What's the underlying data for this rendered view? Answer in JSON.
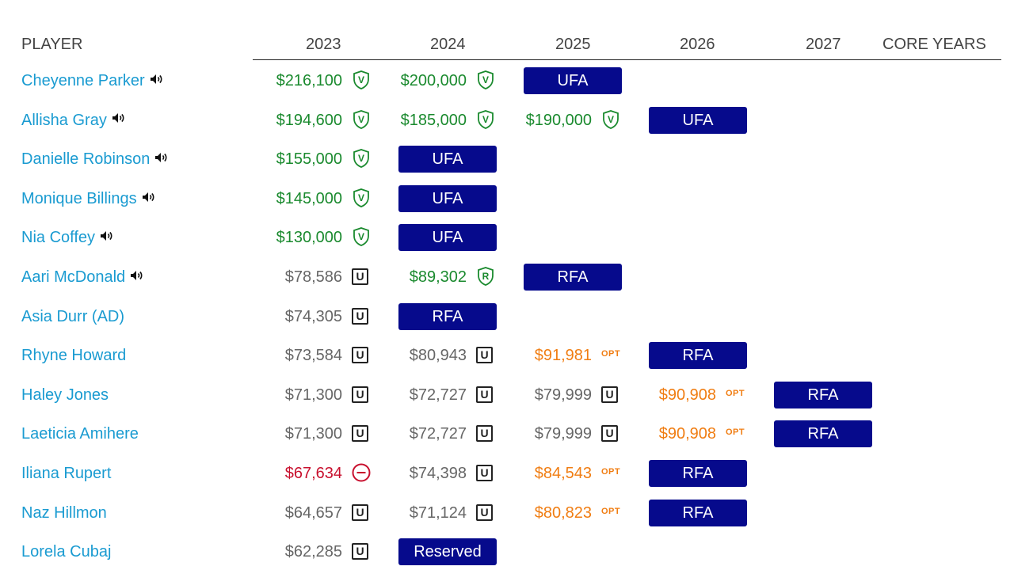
{
  "colors": {
    "player_link": "#1a9bd1",
    "amount_green": "#1a8a2e",
    "amount_gray": "#666666",
    "amount_orange": "#f07d12",
    "amount_red": "#c8102e",
    "status_pill": "#060a8c"
  },
  "table": {
    "headers": {
      "player": "PLAYER",
      "y2023": "2023",
      "y2024": "2024",
      "y2025": "2025",
      "y2026": "2026",
      "y2027": "2027",
      "core_years": "CORE YEARS"
    },
    "rows": [
      {
        "player": "Cheyenne Parker",
        "has_audio": true,
        "cells": [
          {
            "kind": "amount",
            "value": "$216,100",
            "tone": "green",
            "icon": "shield-v"
          },
          {
            "kind": "amount",
            "value": "$200,000",
            "tone": "green",
            "icon": "shield-v"
          },
          {
            "kind": "status",
            "value": "UFA"
          }
        ]
      },
      {
        "player": "Allisha Gray",
        "has_audio": true,
        "cells": [
          {
            "kind": "amount",
            "value": "$194,600",
            "tone": "green",
            "icon": "shield-v"
          },
          {
            "kind": "amount",
            "value": "$185,000",
            "tone": "green",
            "icon": "shield-v"
          },
          {
            "kind": "amount",
            "value": "$190,000",
            "tone": "green",
            "icon": "shield-v"
          },
          {
            "kind": "status",
            "value": "UFA"
          }
        ]
      },
      {
        "player": "Danielle Robinson",
        "has_audio": true,
        "cells": [
          {
            "kind": "amount",
            "value": "$155,000",
            "tone": "green",
            "icon": "shield-v"
          },
          {
            "kind": "status",
            "value": "UFA"
          }
        ]
      },
      {
        "player": "Monique Billings",
        "has_audio": true,
        "cells": [
          {
            "kind": "amount",
            "value": "$145,000",
            "tone": "green",
            "icon": "shield-v"
          },
          {
            "kind": "status",
            "value": "UFA"
          }
        ]
      },
      {
        "player": "Nia Coffey",
        "has_audio": true,
        "cells": [
          {
            "kind": "amount",
            "value": "$130,000",
            "tone": "green",
            "icon": "shield-v"
          },
          {
            "kind": "status",
            "value": "UFA"
          }
        ]
      },
      {
        "player": "Aari McDonald",
        "has_audio": true,
        "cells": [
          {
            "kind": "amount",
            "value": "$78,586",
            "tone": "gray",
            "icon": "u-box"
          },
          {
            "kind": "amount",
            "value": "$89,302",
            "tone": "green",
            "icon": "shield-r"
          },
          {
            "kind": "status",
            "value": "RFA"
          }
        ]
      },
      {
        "player": "Asia Durr (AD)",
        "has_audio": false,
        "cells": [
          {
            "kind": "amount",
            "value": "$74,305",
            "tone": "gray",
            "icon": "u-box"
          },
          {
            "kind": "status",
            "value": "RFA"
          }
        ]
      },
      {
        "player": "Rhyne Howard",
        "has_audio": false,
        "cells": [
          {
            "kind": "amount",
            "value": "$73,584",
            "tone": "gray",
            "icon": "u-box"
          },
          {
            "kind": "amount",
            "value": "$80,943",
            "tone": "gray",
            "icon": "u-box"
          },
          {
            "kind": "amount",
            "value": "$91,981",
            "tone": "orange",
            "icon": "opt"
          },
          {
            "kind": "status",
            "value": "RFA"
          }
        ]
      },
      {
        "player": "Haley Jones",
        "has_audio": false,
        "cells": [
          {
            "kind": "amount",
            "value": "$71,300",
            "tone": "gray",
            "icon": "u-box"
          },
          {
            "kind": "amount",
            "value": "$72,727",
            "tone": "gray",
            "icon": "u-box"
          },
          {
            "kind": "amount",
            "value": "$79,999",
            "tone": "gray",
            "icon": "u-box"
          },
          {
            "kind": "amount",
            "value": "$90,908",
            "tone": "orange",
            "icon": "opt"
          },
          {
            "kind": "status",
            "value": "RFA"
          }
        ]
      },
      {
        "player": "Laeticia Amihere",
        "has_audio": false,
        "cells": [
          {
            "kind": "amount",
            "value": "$71,300",
            "tone": "gray",
            "icon": "u-box"
          },
          {
            "kind": "amount",
            "value": "$72,727",
            "tone": "gray",
            "icon": "u-box"
          },
          {
            "kind": "amount",
            "value": "$79,999",
            "tone": "gray",
            "icon": "u-box"
          },
          {
            "kind": "amount",
            "value": "$90,908",
            "tone": "orange",
            "icon": "opt"
          },
          {
            "kind": "status",
            "value": "RFA"
          }
        ]
      },
      {
        "player": "Iliana Rupert",
        "has_audio": false,
        "cells": [
          {
            "kind": "amount",
            "value": "$67,634",
            "tone": "red",
            "icon": "minus-circle"
          },
          {
            "kind": "amount",
            "value": "$74,398",
            "tone": "gray",
            "icon": "u-box"
          },
          {
            "kind": "amount",
            "value": "$84,543",
            "tone": "orange",
            "icon": "opt"
          },
          {
            "kind": "status",
            "value": "RFA"
          }
        ]
      },
      {
        "player": "Naz Hillmon",
        "has_audio": false,
        "cells": [
          {
            "kind": "amount",
            "value": "$64,657",
            "tone": "gray",
            "icon": "u-box"
          },
          {
            "kind": "amount",
            "value": "$71,124",
            "tone": "gray",
            "icon": "u-box"
          },
          {
            "kind": "amount",
            "value": "$80,823",
            "tone": "orange",
            "icon": "opt"
          },
          {
            "kind": "status",
            "value": "RFA"
          }
        ]
      },
      {
        "player": "Lorela Cubaj",
        "has_audio": false,
        "cells": [
          {
            "kind": "amount",
            "value": "$62,285",
            "tone": "gray",
            "icon": "u-box"
          },
          {
            "kind": "status",
            "value": "Reserved"
          }
        ]
      }
    ],
    "labels": {
      "u_box": "U",
      "opt": "OPT",
      "shield_v": "V",
      "shield_r": "R"
    }
  }
}
